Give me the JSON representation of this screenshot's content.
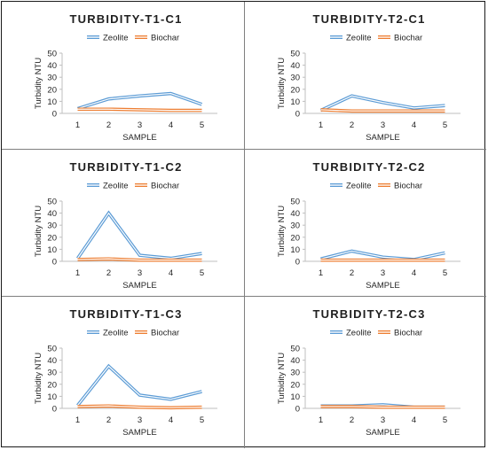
{
  "chart_data": [
    {
      "id": "t1c1",
      "type": "line",
      "title": "TURBIDITY-T1-C1",
      "xlabel": "SAMPLE",
      "ylabel": "Turbidity NTU",
      "categories": [
        "1",
        "2",
        "3",
        "4",
        "5"
      ],
      "ylim": [
        0,
        50
      ],
      "yticks": [
        0,
        10,
        20,
        30,
        40,
        50
      ],
      "grid": false,
      "legend_position": "top",
      "series": [
        {
          "name": "Zeolite",
          "values": [
            4,
            12,
            14.5,
            16.5,
            7.5
          ],
          "color": "#5b9bd5"
        },
        {
          "name": "Biochar",
          "values": [
            3.5,
            3.5,
            3,
            2.5,
            2.5
          ],
          "color": "#ed7d31"
        }
      ]
    },
    {
      "id": "t2c1",
      "type": "line",
      "title": "TURBIDITY-T2-C1",
      "xlabel": "SAMPLE",
      "ylabel": "Turbidity NTU",
      "categories": [
        "1",
        "2",
        "3",
        "4",
        "5"
      ],
      "ylim": [
        0,
        50
      ],
      "yticks": [
        0,
        10,
        20,
        30,
        40,
        50
      ],
      "grid": false,
      "legend_position": "top",
      "series": [
        {
          "name": "Zeolite",
          "values": [
            2.5,
            14.5,
            9,
            4.5,
            6.5
          ],
          "color": "#5b9bd5"
        },
        {
          "name": "Biochar",
          "values": [
            3,
            2,
            2,
            2,
            2
          ],
          "color": "#ed7d31"
        }
      ]
    },
    {
      "id": "t1c2",
      "type": "line",
      "title": "TURBIDITY-T1-C2",
      "xlabel": "SAMPLE",
      "ylabel": "Turbidity NTU",
      "categories": [
        "1",
        "2",
        "3",
        "4",
        "5"
      ],
      "ylim": [
        0,
        50
      ],
      "yticks": [
        0,
        10,
        20,
        30,
        40,
        50
      ],
      "grid": false,
      "legend_position": "top",
      "series": [
        {
          "name": "Zeolite",
          "values": [
            2.5,
            40,
            5,
            2.5,
            6.5
          ],
          "color": "#5b9bd5"
        },
        {
          "name": "Biochar",
          "values": [
            1.5,
            2,
            1,
            1,
            1
          ],
          "color": "#ed7d31"
        }
      ]
    },
    {
      "id": "t2c2",
      "type": "line",
      "title": "TURBIDITY-T2-C2",
      "xlabel": "SAMPLE",
      "ylabel": "Turbidity NTU",
      "categories": [
        "1",
        "2",
        "3",
        "4",
        "5"
      ],
      "ylim": [
        0,
        50
      ],
      "yticks": [
        0,
        10,
        20,
        30,
        40,
        50
      ],
      "grid": false,
      "legend_position": "top",
      "series": [
        {
          "name": "Zeolite",
          "values": [
            2,
            8.5,
            3.5,
            1.5,
            7
          ],
          "color": "#5b9bd5"
        },
        {
          "name": "Biochar",
          "values": [
            1,
            1,
            1,
            1,
            1
          ],
          "color": "#ed7d31"
        }
      ]
    },
    {
      "id": "t1c3",
      "type": "line",
      "title": "TURBIDITY-T1-C3",
      "xlabel": "SAMPLE",
      "ylabel": "Turbidity NTU",
      "categories": [
        "1",
        "2",
        "3",
        "4",
        "5"
      ],
      "ylim": [
        0,
        50
      ],
      "yticks": [
        0,
        10,
        20,
        30,
        40,
        50
      ],
      "grid": false,
      "legend_position": "top",
      "series": [
        {
          "name": "Zeolite",
          "values": [
            2.5,
            35,
            11,
            7.5,
            14
          ],
          "color": "#5b9bd5"
        },
        {
          "name": "Biochar",
          "values": [
            1.5,
            2,
            1,
            0.5,
            1
          ],
          "color": "#ed7d31"
        }
      ]
    },
    {
      "id": "t2c3",
      "type": "line",
      "title": "TURBIDITY-T2-C3",
      "xlabel": "SAMPLE",
      "ylabel": "Turbidity NTU",
      "categories": [
        "1",
        "2",
        "3",
        "4",
        "5"
      ],
      "ylim": [
        0,
        50
      ],
      "yticks": [
        0,
        10,
        20,
        30,
        40,
        50
      ],
      "grid": false,
      "legend_position": "top",
      "series": [
        {
          "name": "Zeolite",
          "values": [
            2,
            2,
            3,
            1,
            1
          ],
          "color": "#5b9bd5"
        },
        {
          "name": "Biochar",
          "values": [
            1.5,
            1.5,
            1,
            1,
            1
          ],
          "color": "#ed7d31"
        }
      ]
    }
  ]
}
